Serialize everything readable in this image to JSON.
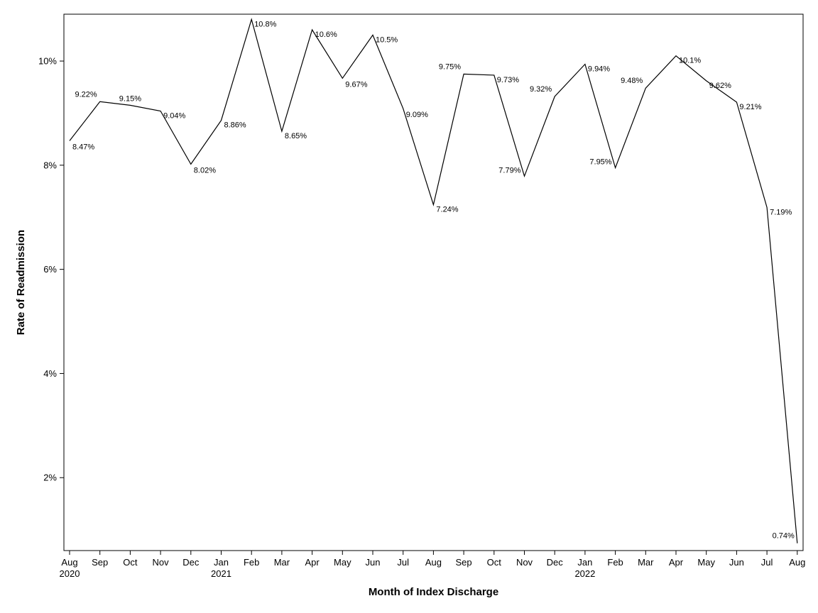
{
  "chart_data": {
    "type": "line",
    "title": "",
    "xlabel": "Month of Index Discharge",
    "ylabel": "Rate of Readmission",
    "ylim": [
      0.6,
      10.9
    ],
    "yticks": [
      2,
      4,
      6,
      8,
      10
    ],
    "ytick_labels": [
      "2%",
      "4%",
      "6%",
      "8%",
      "10%"
    ],
    "grid": false,
    "legend": "none",
    "series": [
      {
        "name": "Rate of Readmission",
        "color": "#000000",
        "values": [
          8.47,
          9.22,
          9.15,
          9.04,
          8.02,
          8.86,
          10.8,
          8.65,
          10.6,
          9.67,
          10.5,
          9.09,
          7.24,
          9.75,
          9.73,
          7.79,
          9.32,
          9.94,
          7.95,
          9.48,
          10.1,
          9.62,
          9.21,
          7.19,
          0.74
        ]
      }
    ],
    "value_labels": [
      "8.47%",
      "9.22%",
      "9.15%",
      "9.04%",
      "8.02%",
      "8.86%",
      "10.8%",
      "8.65%",
      "10.6%",
      "9.67%",
      "10.5%",
      "9.09%",
      "7.24%",
      "9.75%",
      "9.73%",
      "7.79%",
      "9.32%",
      "9.94%",
      "7.95%",
      "9.48%",
      "10.1%",
      "9.62%",
      "9.21%",
      "7.19%",
      "0.74%"
    ],
    "label_placement": [
      "below-right",
      "above-left",
      "above",
      "right",
      "below-right",
      "right",
      "right",
      "right",
      "right",
      "below-right",
      "right",
      "below-right",
      "right",
      "above-left",
      "right",
      "left",
      "above-left",
      "right",
      "left",
      "above-left",
      "right",
      "right",
      "right",
      "right",
      "above-left"
    ],
    "categories": [
      "Aug",
      "Sep",
      "Oct",
      "Nov",
      "Dec",
      "Jan",
      "Feb",
      "Mar",
      "Apr",
      "May",
      "Jun",
      "Jul",
      "Aug",
      "Sep",
      "Oct",
      "Nov",
      "Dec",
      "Jan",
      "Feb",
      "Mar",
      "Apr",
      "May",
      "Jun",
      "Jul",
      "Aug"
    ],
    "year_labels": [
      {
        "index": 0,
        "label": "2020"
      },
      {
        "index": 5,
        "label": "2021"
      },
      {
        "index": 17,
        "label": "2022"
      }
    ]
  }
}
